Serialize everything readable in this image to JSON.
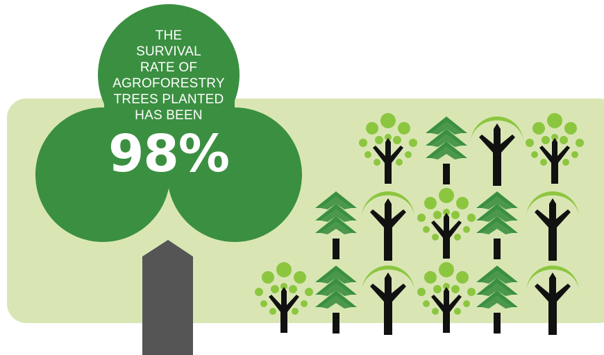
{
  "headline": {
    "lines": [
      "THE",
      "SURVIVAL",
      "RATE OF",
      "AGROFORESTRY",
      "TREES PLANTED",
      "HAS BEEN"
    ],
    "value": "98%"
  },
  "colors": {
    "panel": "#d9e6b4",
    "canopy": "#3b8f41",
    "trunk": "#555555",
    "pine": "#3b8f41",
    "lime": "#8cc63f",
    "tree_trunk": "#111111",
    "text": "#ffffff"
  },
  "icons": {
    "row1": [
      "dotted-tree-icon",
      "pine-tree-icon",
      "round-tree-icon",
      "dotted-tree-icon"
    ],
    "row2": [
      "pine-tree-icon",
      "round-tree-icon",
      "dotted-tree-icon",
      "pine-tree-icon",
      "round-tree-icon"
    ],
    "row3": [
      "dotted-tree-icon",
      "pine-tree-icon",
      "round-tree-icon",
      "dotted-tree-icon",
      "pine-tree-icon",
      "round-tree-icon"
    ]
  }
}
